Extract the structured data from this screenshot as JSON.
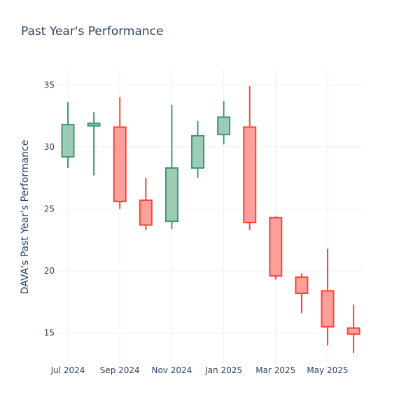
{
  "chart_data": {
    "type": "candlestick",
    "title": "Past Year's Performance",
    "xlabel": "",
    "ylabel": "DAVA's Past Year's Performance",
    "x_tick_labels": [
      "Jul 2024",
      "Sep 2024",
      "Nov 2024",
      "Jan 2025",
      "Mar 2025",
      "May 2025"
    ],
    "y_ticks": [
      15,
      20,
      25,
      30,
      35
    ],
    "ylim": [
      12.5,
      36.2
    ],
    "grid": true,
    "increasing_color": "#3d9970",
    "decreasing_color": "#ff4136",
    "candles": [
      {
        "open": 29.2,
        "high": 33.6,
        "low": 28.3,
        "close": 31.8
      },
      {
        "open": 31.7,
        "high": 32.8,
        "low": 27.7,
        "close": 31.9
      },
      {
        "open": 31.6,
        "high": 34.0,
        "low": 25.0,
        "close": 25.6
      },
      {
        "open": 25.7,
        "high": 27.5,
        "low": 23.3,
        "close": 23.7
      },
      {
        "open": 24.0,
        "high": 33.4,
        "low": 23.4,
        "close": 28.3
      },
      {
        "open": 28.3,
        "high": 32.1,
        "low": 27.5,
        "close": 30.9
      },
      {
        "open": 31.0,
        "high": 33.7,
        "low": 30.2,
        "close": 32.4
      },
      {
        "open": 31.6,
        "high": 34.9,
        "low": 23.3,
        "close": 23.9
      },
      {
        "open": 24.3,
        "high": 24.4,
        "low": 19.3,
        "close": 19.6
      },
      {
        "open": 19.5,
        "high": 19.8,
        "low": 16.6,
        "close": 18.2
      },
      {
        "open": 18.4,
        "high": 21.8,
        "low": 14.0,
        "close": 15.5
      },
      {
        "open": 15.4,
        "high": 17.3,
        "low": 13.4,
        "close": 14.9
      }
    ]
  }
}
